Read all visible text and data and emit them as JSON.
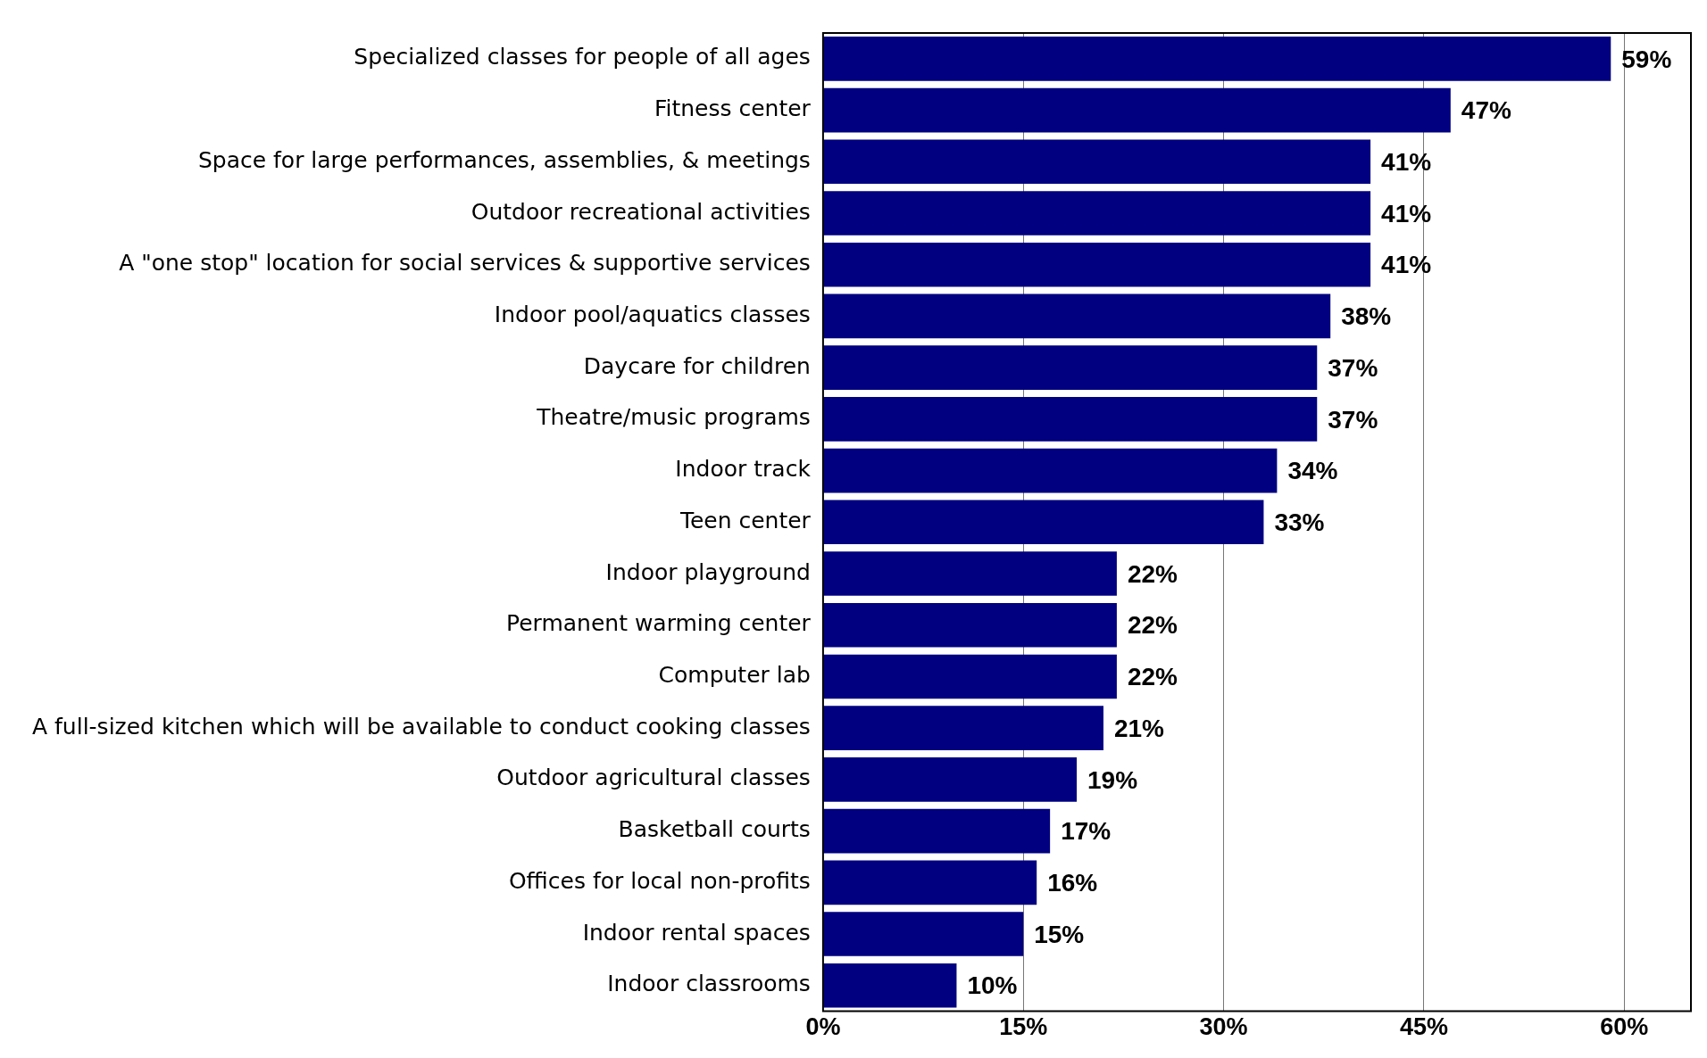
{
  "chart_data": {
    "type": "bar",
    "orientation": "horizontal",
    "categories": [
      "Specialized classes for people of all ages",
      "Fitness center",
      "Space for large performances, assemblies, & meetings",
      "Outdoor recreational activities",
      "A \"one stop\" location for social services & supportive services",
      "Indoor pool/aquatics classes",
      "Daycare for children",
      "Theatre/music programs",
      "Indoor track",
      "Teen center",
      "Indoor playground",
      "Permanent warming center",
      "Computer lab",
      "A full-sized kitchen which will be available to conduct cooking classes",
      "Outdoor agricultural classes",
      "Basketball courts",
      "Offices for local non-profits",
      "Indoor rental spaces",
      "Indoor classrooms"
    ],
    "values": [
      59,
      47,
      41,
      41,
      41,
      38,
      37,
      37,
      34,
      33,
      22,
      22,
      22,
      21,
      19,
      17,
      16,
      15,
      10
    ],
    "color": "#000080",
    "xlim": [
      0,
      65
    ],
    "xticks": [
      {
        "value": 0,
        "label": "0%"
      },
      {
        "value": 15,
        "label": "15%"
      },
      {
        "value": 30,
        "label": "30%"
      },
      {
        "value": 45,
        "label": "45%"
      },
      {
        "value": 60,
        "label": "60%"
      }
    ],
    "value_labels": [
      "59%",
      "47%",
      "41%",
      "41%",
      "41%",
      "38%",
      "37%",
      "37%",
      "34%",
      "33%",
      "22%",
      "22%",
      "22%",
      "21%",
      "19%",
      "17%",
      "16%",
      "15%",
      "10%"
    ],
    "grid": "x",
    "legend": false
  }
}
